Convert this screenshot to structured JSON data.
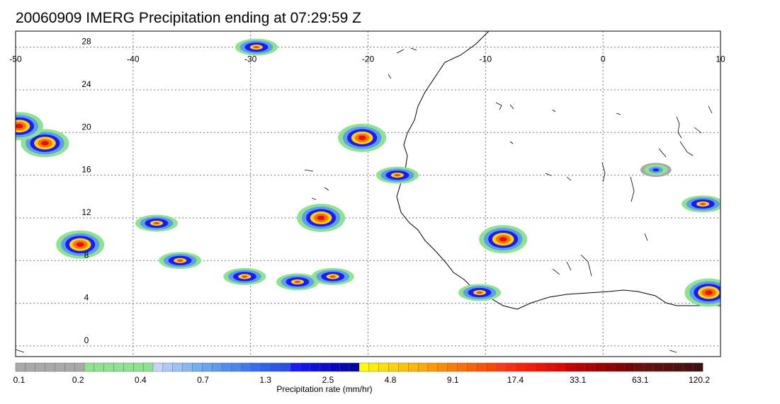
{
  "title": "20060909 IMERG Precipitation ending at 07:29:59 Z",
  "map": {
    "lon_range": [
      -50,
      10
    ],
    "lat_range": [
      -1,
      29.5
    ],
    "lon_ticks": [
      "-50",
      "-40",
      "-30",
      "-20",
      "-10",
      "0",
      "10"
    ],
    "lat_ticks": [
      "28",
      "24",
      "20",
      "16",
      "12",
      "8",
      "4",
      "0"
    ],
    "gridlines": "dotted",
    "coastline_color": "#000000"
  },
  "colorbar": {
    "title": "Precipitation rate (mm/hr)",
    "tick_labels": [
      "0.1",
      "0.2",
      "0.4",
      "0.7",
      "1.3",
      "2.5",
      "4.8",
      "9.1",
      "17.4",
      "33.1",
      "63.1",
      "120.2"
    ],
    "colors": [
      "#a9a9a9",
      "#a9a9a9",
      "#a9a9a9",
      "#a9a9a9",
      "#a9a9a9",
      "#a9a9a9",
      "#a9a9a9",
      "#8fe28f",
      "#8fe28f",
      "#8fe28f",
      "#8fe28f",
      "#8fe28f",
      "#8fe28f",
      "#8fe28f",
      "#c7d4f7",
      "#aec8f7",
      "#9ec0f5",
      "#8ab8f5",
      "#76aef2",
      "#68a5f0",
      "#5d9cef",
      "#4f8ef0",
      "#4a85f0",
      "#3f78f0",
      "#356cf0",
      "#2f62ee",
      "#2b58ea",
      "#2a4fe6",
      "#1a1aff",
      "#1414f0",
      "#0f0fe0",
      "#0b0bd2",
      "#0808c4",
      "#0505b5",
      "#0202a8",
      "#ffff00",
      "#ffee00",
      "#ffe000",
      "#ffd200",
      "#ffc400",
      "#ffb800",
      "#ffaa00",
      "#ff9b00",
      "#ff8c00",
      "#ff7e00",
      "#ff7000",
      "#ff6200",
      "#ff5400",
      "#ff4600",
      "#ff3a1a",
      "#ff2e12",
      "#ff220a",
      "#f81c05",
      "#f01400",
      "#e60e00",
      "#dc0800",
      "#c80000",
      "#bb0000",
      "#ad0000",
      "#a00000",
      "#930000",
      "#860000",
      "#790000",
      "#6e0d0d",
      "#661010",
      "#5e1010",
      "#561010",
      "#4e1010",
      "#471010",
      "#401010"
    ]
  },
  "precip_cells": [
    {
      "lon": -47.5,
      "lat": 19.0,
      "level": "heavy"
    },
    {
      "lon": -49.7,
      "lat": 20.6,
      "level": "heavy"
    },
    {
      "lon": -44.5,
      "lat": 9.5,
      "level": "heavy"
    },
    {
      "lon": -38.0,
      "lat": 11.5,
      "level": "moderate"
    },
    {
      "lon": -36.0,
      "lat": 8.0,
      "level": "moderate"
    },
    {
      "lon": -30.5,
      "lat": 6.5,
      "level": "moderate"
    },
    {
      "lon": -24.0,
      "lat": 12.0,
      "level": "heavy"
    },
    {
      "lon": -20.5,
      "lat": 19.5,
      "level": "heavy"
    },
    {
      "lon": -26.0,
      "lat": 6.0,
      "level": "moderate"
    },
    {
      "lon": -23.0,
      "lat": 6.5,
      "level": "moderate"
    },
    {
      "lon": -17.5,
      "lat": 16.0,
      "level": "moderate"
    },
    {
      "lon": -8.5,
      "lat": 10.0,
      "level": "heavy"
    },
    {
      "lon": -10.5,
      "lat": 5.0,
      "level": "moderate"
    },
    {
      "lon": -29.5,
      "lat": 28.0,
      "level": "moderate"
    },
    {
      "lon": 9.0,
      "lat": 5.0,
      "level": "heavy"
    },
    {
      "lon": 8.5,
      "lat": 13.3,
      "level": "moderate"
    },
    {
      "lon": 4.5,
      "lat": 16.5,
      "level": "light"
    }
  ]
}
